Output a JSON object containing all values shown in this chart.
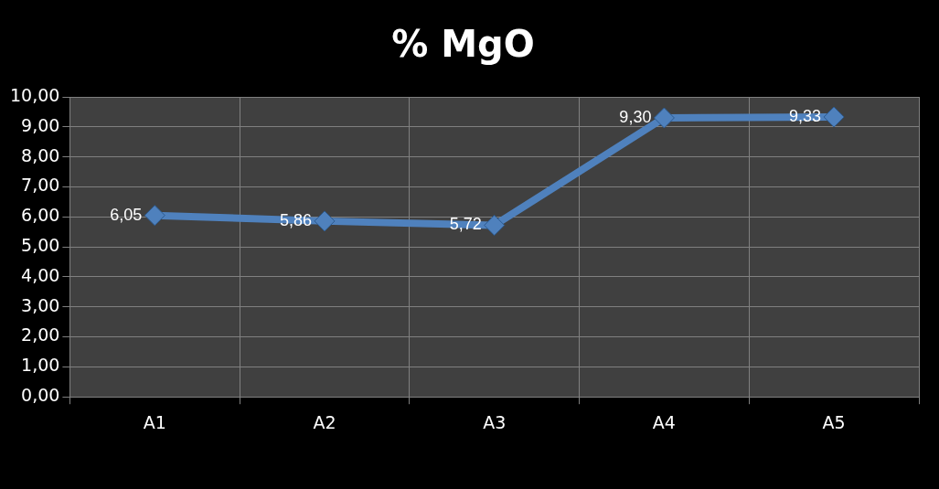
{
  "chart_data": {
    "type": "line",
    "title": "% MgO",
    "categories": [
      "A1",
      "A2",
      "A3",
      "A4",
      "A5"
    ],
    "series": [
      {
        "color": "#4f81bd",
        "values": [
          6.05,
          5.86,
          5.72,
          9.3,
          9.33
        ],
        "value_labels": [
          "6,05",
          "5,86",
          "5,72",
          "9,30",
          "9,33"
        ]
      }
    ],
    "ylim": [
      0,
      10
    ],
    "yticks": [
      {
        "value": 0,
        "label": "0,00"
      },
      {
        "value": 1,
        "label": "1,00"
      },
      {
        "value": 2,
        "label": "2,00"
      },
      {
        "value": 3,
        "label": "3,00"
      },
      {
        "value": 4,
        "label": "4,00"
      },
      {
        "value": 5,
        "label": "5,00"
      },
      {
        "value": 6,
        "label": "6,00"
      },
      {
        "value": 7,
        "label": "7,00"
      },
      {
        "value": 8,
        "label": "8,00"
      },
      {
        "value": 9,
        "label": "9,00"
      },
      {
        "value": 10,
        "label": "10,00"
      }
    ],
    "grid": true,
    "legend": false,
    "marker": "diamond",
    "line_style": "solid"
  }
}
